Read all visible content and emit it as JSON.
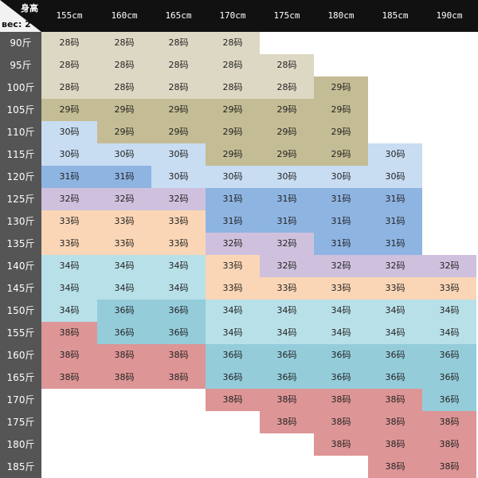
{
  "corner": {
    "height_label": "身高",
    "weight_label": "вес: 2"
  },
  "heights": [
    "155cm",
    "160cm",
    "165cm",
    "170cm",
    "175cm",
    "180cm",
    "185cm",
    "190cm"
  ],
  "weights": [
    "90斤",
    "95斤",
    "100斤",
    "105斤",
    "110斤",
    "115斤",
    "120斤",
    "125斤",
    "130斤",
    "135斤",
    "140斤",
    "145斤",
    "150斤",
    "155斤",
    "160斤",
    "165斤",
    "170斤",
    "175斤",
    "180斤",
    "185斤"
  ],
  "colors": {
    "28": "#ddd8c4",
    "29": "#c4bc94",
    "30": "#c8dcf2",
    "31": "#8eb4e2",
    "32": "#cfc1dd",
    "33": "#fad6b6",
    "34": "#b8e0e8",
    "36": "#94ccda",
    "38": "#dd9596"
  },
  "grid": [
    [
      "28码",
      "28码",
      "28码",
      "28码",
      "",
      "",
      "",
      ""
    ],
    [
      "28码",
      "28码",
      "28码",
      "28码",
      "28码",
      "",
      "",
      ""
    ],
    [
      "28码",
      "28码",
      "28码",
      "28码",
      "28码",
      "29码",
      "",
      ""
    ],
    [
      "29码",
      "29码",
      "29码",
      "29码",
      "29码",
      "29码",
      "",
      ""
    ],
    [
      "30码",
      "29码",
      "29码",
      "29码",
      "29码",
      "29码",
      "",
      ""
    ],
    [
      "30码",
      "30码",
      "30码",
      "29码",
      "29码",
      "29码",
      "30码",
      ""
    ],
    [
      "31码",
      "31码",
      "30码",
      "30码",
      "30码",
      "30码",
      "30码",
      ""
    ],
    [
      "32码",
      "32码",
      "32码",
      "31码",
      "31码",
      "31码",
      "31码",
      ""
    ],
    [
      "33码",
      "33码",
      "33码",
      "31码",
      "31码",
      "31码",
      "31码",
      ""
    ],
    [
      "33码",
      "33码",
      "33码",
      "32码",
      "32码",
      "31码",
      "31码",
      ""
    ],
    [
      "34码",
      "34码",
      "34码",
      "33码",
      "32码",
      "32码",
      "32码",
      "32码"
    ],
    [
      "34码",
      "34码",
      "34码",
      "33码",
      "33码",
      "33码",
      "33码",
      "33码"
    ],
    [
      "34码",
      "36码",
      "36码",
      "34码",
      "34码",
      "34码",
      "34码",
      "34码"
    ],
    [
      "38码",
      "36码",
      "36码",
      "34码",
      "34码",
      "34码",
      "34码",
      "34码"
    ],
    [
      "38码",
      "38码",
      "38码",
      "36码",
      "36码",
      "36码",
      "36码",
      "36码"
    ],
    [
      "38码",
      "38码",
      "38码",
      "36码",
      "36码",
      "36码",
      "36码",
      "36码"
    ],
    [
      "",
      "",
      "",
      "38码",
      "38码",
      "38码",
      "38码",
      "36码"
    ],
    [
      "",
      "",
      "",
      "",
      "38码",
      "38码",
      "38码",
      "38码"
    ],
    [
      "",
      "",
      "",
      "",
      "",
      "38码",
      "38码",
      "38码"
    ],
    [
      "",
      "",
      "",
      "",
      "",
      "",
      "38码",
      "38码"
    ]
  ]
}
